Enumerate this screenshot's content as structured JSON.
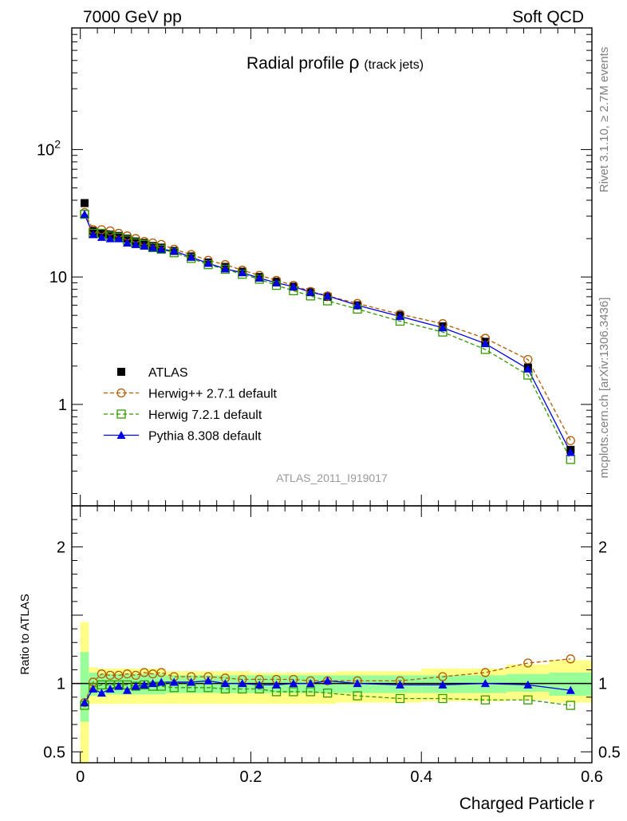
{
  "header": {
    "left": "7000 GeV pp",
    "right": "Soft QCD"
  },
  "side_labels": {
    "rivet": "Rivet 3.1.10, ≥ 2.7M events",
    "mcplots": "mcplots.cern.ch [arXiv:1306.3436]"
  },
  "chart_data": [
    {
      "type": "line",
      "panel": "main",
      "title": "Radial profile",
      "title_symbol": "ρ",
      "title_suffix": "(track jets)",
      "watermark": "ATLAS_2011_I919017",
      "y_scale": "log",
      "xlim": [
        -0.01,
        0.6
      ],
      "ylim": [
        0.16,
        900
      ],
      "y_ticks": [
        {
          "value": 1,
          "label": "1"
        },
        {
          "value": 10,
          "label": "10"
        },
        {
          "value": 100,
          "label": "10",
          "sup": "2"
        }
      ],
      "legend_position": "lower-left",
      "x": [
        0.005,
        0.015,
        0.025,
        0.035,
        0.045,
        0.055,
        0.065,
        0.075,
        0.085,
        0.095,
        0.11,
        0.13,
        0.15,
        0.17,
        0.19,
        0.21,
        0.23,
        0.25,
        0.27,
        0.29,
        0.325,
        0.375,
        0.425,
        0.475,
        0.525,
        0.575
      ],
      "series": [
        {
          "name": "ATLAS",
          "style": "data",
          "color": "#000000",
          "values": [
            38,
            23,
            22,
            21.5,
            21,
            20,
            19,
            18.5,
            17.5,
            17,
            16,
            14.5,
            13,
            12,
            11,
            10,
            9.2,
            8.4,
            7.6,
            7,
            6,
            5,
            4.1,
            3.1,
            1.95,
            0.44
          ]
        },
        {
          "name": "Herwig++ 2.7.1 default",
          "style": "circle-dashed",
          "color": "#b35900",
          "values": [
            32,
            23.5,
            23.5,
            23,
            22,
            21,
            20,
            19,
            18.5,
            18,
            16.5,
            15,
            13.5,
            12.5,
            11.3,
            10.3,
            9.4,
            8.6,
            7.7,
            7.1,
            6.2,
            5.1,
            4.3,
            3.3,
            2.25,
            0.52
          ]
        },
        {
          "name": "Herwig 7.2.1 default",
          "style": "square-dashed",
          "color": "#339900",
          "values": [
            31,
            22,
            22,
            21,
            20.5,
            19.5,
            18.5,
            18,
            17,
            16.5,
            15.5,
            14,
            12.5,
            11.5,
            10.5,
            9.6,
            8.6,
            7.8,
            7.1,
            6.5,
            5.6,
            4.5,
            3.7,
            2.7,
            1.7,
            0.37
          ]
        },
        {
          "name": "Pythia 8.308 default",
          "style": "triangle-solid",
          "color": "#0000e6",
          "values": [
            31,
            21.5,
            20.5,
            20,
            20,
            18.5,
            18,
            17.5,
            17,
            16.5,
            16,
            14.3,
            12.8,
            11.6,
            10.8,
            9.8,
            9.0,
            8.4,
            7.6,
            7.1,
            6.0,
            4.9,
            4.0,
            3.0,
            1.9,
            0.42
          ]
        }
      ]
    },
    {
      "type": "line",
      "panel": "ratio",
      "ylabel": "Ratio to ATLAS",
      "xlabel": "Charged Particle r",
      "xlim": [
        -0.01,
        0.6
      ],
      "ylim": [
        0.42,
        2.3
      ],
      "y_ticks": [
        {
          "value": 0.5,
          "label": "0.5"
        },
        {
          "value": 1,
          "label": "1"
        },
        {
          "value": 2,
          "label": "2"
        }
      ],
      "x_ticks": [
        {
          "value": 0,
          "label": "0"
        },
        {
          "value": 0.2,
          "label": "0.2"
        },
        {
          "value": 0.4,
          "label": "0.4"
        },
        {
          "value": 0.6,
          "label": "0.6"
        }
      ],
      "band_colors": {
        "stat": "#99ff99",
        "total": "#ffff88"
      },
      "bands": [
        {
          "x0": 0.0,
          "x1": 0.01,
          "y_lo": 0.42,
          "y_hi": 1.45,
          "g_lo": 0.72,
          "g_hi": 1.23
        },
        {
          "x0": 0.01,
          "x1": 0.02,
          "y_lo": 0.85,
          "y_hi": 1.12,
          "g_lo": 0.91,
          "g_hi": 1.08
        },
        {
          "x0": 0.02,
          "x1": 0.1,
          "y_lo": 0.85,
          "y_hi": 1.11,
          "g_lo": 0.92,
          "g_hi": 1.07
        },
        {
          "x0": 0.1,
          "x1": 0.2,
          "y_lo": 0.85,
          "y_hi": 1.09,
          "g_lo": 0.93,
          "g_hi": 1.06
        },
        {
          "x0": 0.2,
          "x1": 0.3,
          "y_lo": 0.85,
          "y_hi": 1.08,
          "g_lo": 0.93,
          "g_hi": 1.06
        },
        {
          "x0": 0.3,
          "x1": 0.4,
          "y_lo": 0.86,
          "y_hi": 1.09,
          "g_lo": 0.93,
          "g_hi": 1.06
        },
        {
          "x0": 0.4,
          "x1": 0.5,
          "y_lo": 0.87,
          "y_hi": 1.11,
          "g_lo": 0.93,
          "g_hi": 1.06
        },
        {
          "x0": 0.5,
          "x1": 0.55,
          "y_lo": 0.88,
          "y_hi": 1.14,
          "g_lo": 0.94,
          "g_hi": 1.07
        },
        {
          "x0": 0.55,
          "x1": 0.6,
          "y_lo": 0.86,
          "y_hi": 1.17,
          "g_lo": 0.91,
          "g_hi": 1.08
        }
      ],
      "x": [
        0.005,
        0.015,
        0.025,
        0.035,
        0.045,
        0.055,
        0.065,
        0.075,
        0.085,
        0.095,
        0.11,
        0.13,
        0.15,
        0.17,
        0.19,
        0.21,
        0.23,
        0.25,
        0.27,
        0.29,
        0.325,
        0.375,
        0.425,
        0.475,
        0.525,
        0.575
      ],
      "series": [
        {
          "name": "Herwig++ 2.7.1 default",
          "style": "circle-dashed",
          "color": "#b35900",
          "values": [
            0.86,
            1.01,
            1.07,
            1.06,
            1.06,
            1.07,
            1.06,
            1.08,
            1.07,
            1.08,
            1.05,
            1.05,
            1.05,
            1.04,
            1.03,
            1.03,
            1.03,
            1.03,
            1.02,
            1.02,
            1.02,
            1.02,
            1.05,
            1.08,
            1.15,
            1.18
          ]
        },
        {
          "name": "Herwig 7.2.1 default",
          "style": "square-dashed",
          "color": "#339900",
          "values": [
            0.84,
            0.97,
            0.99,
            0.99,
            0.99,
            0.99,
            0.98,
            0.99,
            0.98,
            0.98,
            0.97,
            0.97,
            0.97,
            0.96,
            0.96,
            0.96,
            0.94,
            0.94,
            0.94,
            0.93,
            0.91,
            0.89,
            0.89,
            0.88,
            0.88,
            0.84
          ]
        },
        {
          "name": "Pythia 8.308 default",
          "style": "triangle-solid",
          "color": "#0000e6",
          "values": [
            0.86,
            0.96,
            0.93,
            0.96,
            0.98,
            0.95,
            0.98,
            0.99,
            1.0,
            1.01,
            1.01,
            1.01,
            1.02,
            1.0,
            1.0,
            0.99,
            0.99,
            1.0,
            1.0,
            1.02,
            1.0,
            0.99,
            0.99,
            1.0,
            0.99,
            0.95
          ]
        }
      ]
    }
  ]
}
